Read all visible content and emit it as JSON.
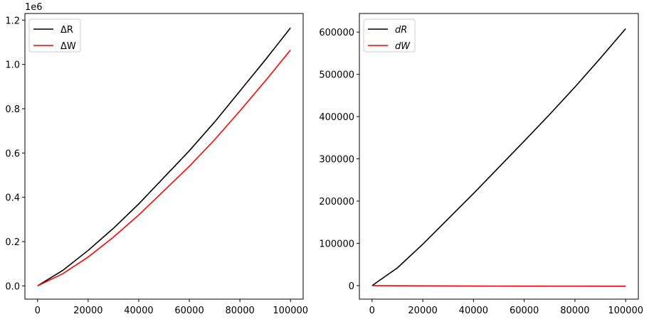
{
  "chart_data": [
    {
      "type": "line",
      "offset_label": "1e6",
      "x": [
        0,
        10000,
        20000,
        30000,
        40000,
        50000,
        60000,
        70000,
        80000,
        90000,
        100000
      ],
      "series": [
        {
          "name": "ΔR",
          "color": "#000000",
          "values": [
            0,
            0.07,
            0.16,
            0.26,
            0.37,
            0.49,
            0.61,
            0.74,
            0.88,
            1.02,
            1.165
          ]
        },
        {
          "name": "ΔW",
          "color": "#ff0000",
          "values": [
            0,
            0.055,
            0.13,
            0.22,
            0.32,
            0.43,
            0.54,
            0.66,
            0.79,
            0.925,
            1.065
          ]
        }
      ],
      "xlim": [
        -5000,
        105000
      ],
      "xticks": [
        0,
        20000,
        40000,
        60000,
        80000,
        100000
      ],
      "ylim": [
        -0.06,
        1.23
      ],
      "yticks": [
        {
          "value": 0,
          "label": "0.0"
        },
        0.2,
        0.4,
        0.6,
        0.8,
        {
          "value": 1,
          "label": "1.0"
        },
        1.2
      ],
      "legend": "upper-left"
    },
    {
      "type": "line",
      "x": [
        0,
        10000,
        20000,
        30000,
        40000,
        50000,
        60000,
        70000,
        80000,
        90000,
        100000
      ],
      "series": [
        {
          "name": "dR",
          "color": "#000000",
          "values": [
            0,
            42000,
            98000,
            158000,
            218000,
            280000,
            342000,
            405000,
            470000,
            538000,
            608000
          ]
        },
        {
          "name": "dW",
          "color": "#ff0000",
          "values": [
            0,
            -300,
            -500,
            -800,
            -1000,
            -1100,
            -1200,
            -1300,
            -1300,
            -1400,
            -1400
          ]
        }
      ],
      "xlim": [
        -5000,
        105000
      ],
      "xticks": [
        0,
        20000,
        40000,
        60000,
        80000,
        100000
      ],
      "ylim": [
        -32000,
        644000
      ],
      "yticks": [
        0,
        100000,
        200000,
        300000,
        400000,
        500000,
        600000
      ],
      "legend": "upper-left"
    }
  ]
}
